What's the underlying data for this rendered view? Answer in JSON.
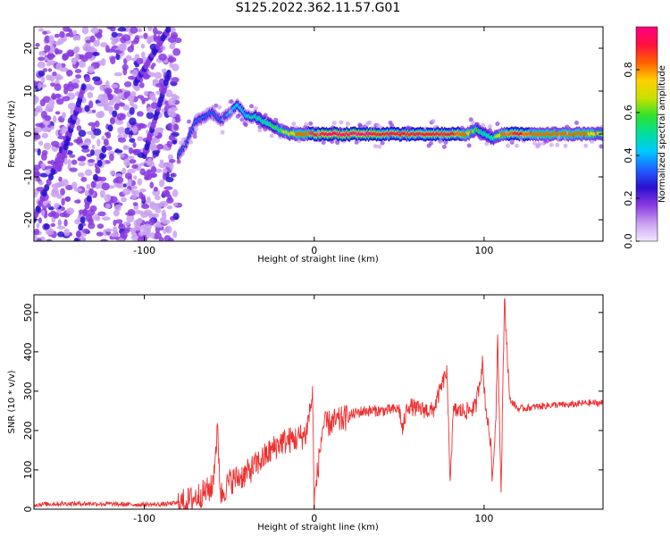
{
  "figure_title": "S125.2022.362.11.57.G01",
  "colors": {
    "snr_line": "#ee3030",
    "colormap": [
      "#f4e8ff",
      "#c9a0f0",
      "#8a3ae0",
      "#2a10d0",
      "#1f5fff",
      "#00c8ff",
      "#00e0a0",
      "#2ee02e",
      "#c8e000",
      "#ffd000",
      "#ff6000",
      "#ff1040",
      "#ff0080"
    ]
  },
  "chart_data": [
    {
      "type": "heatmap",
      "xlabel": "Height of straight line (km)",
      "ylabel": "Frequency (Hz)",
      "xlim": [
        -165,
        170
      ],
      "ylim": [
        -25,
        25
      ],
      "x_ticks": [
        -100,
        0,
        100
      ],
      "y_ticks": [
        -20,
        -10,
        0,
        10,
        20
      ],
      "colorbar": {
        "label": "Normalized spectral amplitude",
        "range": [
          0,
          1
        ],
        "ticks": [
          0.0,
          0.2,
          0.4,
          0.6,
          0.8
        ]
      },
      "noise_region_x": [
        -165,
        -80
      ],
      "ridge": {
        "x": [
          -80,
          -75,
          -70,
          -65,
          -60,
          -55,
          -50,
          -45,
          -40,
          -35,
          -30,
          -25,
          -20,
          -15,
          -10,
          -5,
          0,
          10,
          20,
          30,
          40,
          50,
          60,
          70,
          80,
          90,
          95,
          100,
          105,
          110,
          120,
          130,
          140,
          150,
          160,
          170
        ],
        "y": [
          -5,
          -2,
          3,
          4,
          5,
          3,
          5,
          7,
          4,
          4,
          3,
          2,
          1,
          0,
          0,
          0,
          0,
          0,
          0,
          0,
          0,
          0,
          0,
          0,
          0,
          0,
          1,
          0,
          -1,
          0,
          0,
          0,
          0,
          0,
          0,
          0
        ],
        "peak": [
          0.3,
          0.35,
          0.35,
          0.3,
          0.3,
          0.3,
          0.4,
          0.45,
          0.45,
          0.5,
          0.5,
          0.55,
          0.6,
          0.7,
          0.8,
          0.8,
          0.9,
          1.0,
          1.0,
          1.0,
          0.9,
          0.9,
          0.9,
          0.9,
          0.9,
          0.8,
          0.6,
          0.5,
          0.5,
          0.8,
          0.9,
          0.8,
          0.8,
          0.8,
          0.8,
          0.7
        ]
      }
    },
    {
      "type": "line",
      "xlabel": "Height of straight line (km)",
      "ylabel": "SNR (10 * v/v)",
      "xlim": [
        -165,
        170
      ],
      "ylim": [
        0,
        545
      ],
      "x_ticks": [
        -100,
        0,
        100
      ],
      "y_ticks": [
        0,
        100,
        200,
        300,
        400,
        500
      ],
      "series": [
        {
          "x": [
            -165,
            -150,
            -130,
            -110,
            -90,
            -80,
            -75,
            -70,
            -65,
            -60,
            -57,
            -55,
            -50,
            -45,
            -40,
            -35,
            -30,
            -25,
            -20,
            -15,
            -10,
            -5,
            -1,
            0,
            5,
            10,
            15,
            20,
            25,
            30,
            40,
            50,
            52,
            55,
            60,
            70,
            78,
            80,
            82,
            90,
            95,
            99,
            101,
            104,
            105,
            107,
            108,
            110,
            112,
            115,
            120,
            130,
            140,
            150,
            160,
            170
          ],
          "y": [
            12,
            14,
            14,
            12,
            12,
            16,
            20,
            30,
            42,
            55,
            200,
            35,
            70,
            80,
            90,
            110,
            130,
            150,
            170,
            175,
            180,
            190,
            290,
            20,
            210,
            220,
            225,
            235,
            245,
            250,
            250,
            255,
            200,
            265,
            255,
            250,
            350,
            80,
            250,
            250,
            260,
            370,
            260,
            160,
            70,
            250,
            450,
            40,
            540,
            280,
            255,
            260,
            265,
            265,
            270,
            270
          ]
        }
      ]
    }
  ]
}
